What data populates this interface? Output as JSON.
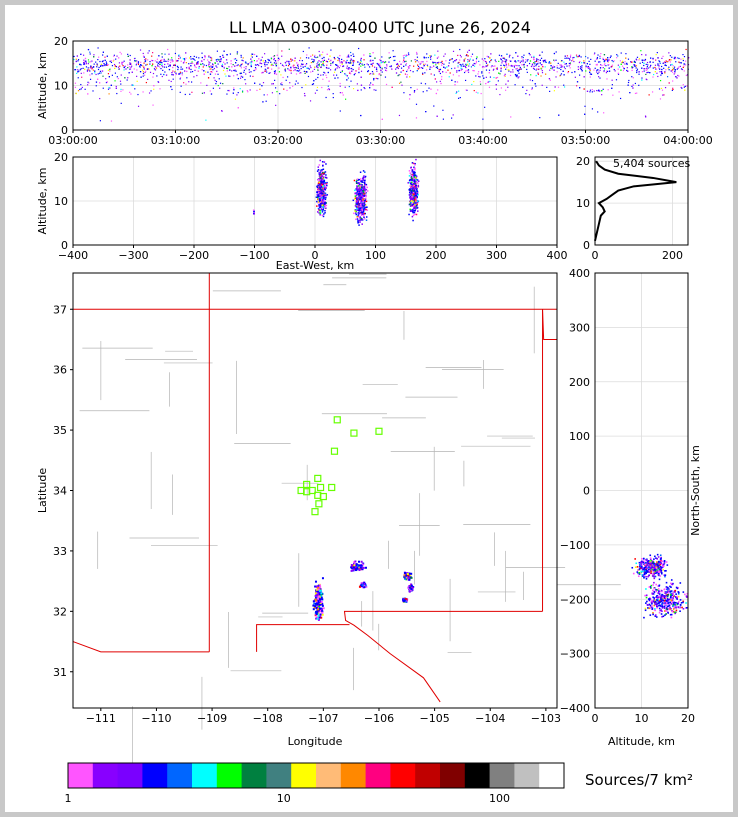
{
  "title": "LL LMA 0300-0400 UTC June 26, 2024",
  "colorbar_label": "Sources/7 km²",
  "source_count": "5,404 sources",
  "colors": [
    "#ff55ff",
    "#8800ff",
    "#7a00ff",
    "#0000ff",
    "#0066ff",
    "#00ffff",
    "#00ff00",
    "#008040",
    "#408080",
    "#ffff00",
    "#ffbb77",
    "#ff8800",
    "#ff0080",
    "#ff0000",
    "#c00000",
    "#800000",
    "#000000",
    "#808080",
    "#c0c0c0",
    "#ffffff"
  ],
  "chart_data": [
    {
      "id": "time-altitude",
      "type": "scatter",
      "xlabel": "",
      "ylabel": "Altitude, km",
      "x_ticks": [
        "03:00:00",
        "03:10:00",
        "03:20:00",
        "03:30:00",
        "03:40:00",
        "03:50:00",
        "04:00:00"
      ],
      "xlim_minutes": [
        0,
        60
      ],
      "ylim": [
        0,
        20
      ],
      "y_ticks": [
        "0",
        "10",
        "20"
      ],
      "grid": true
    },
    {
      "id": "ew-altitude",
      "type": "scatter",
      "xlabel": "East-West, km",
      "ylabel": "Altitude, km",
      "xlim": [
        -400,
        400
      ],
      "x_ticks": [
        "−400",
        "−300",
        "−200",
        "−100",
        "0",
        "100",
        "200",
        "300",
        "400"
      ],
      "ylim": [
        0,
        20
      ],
      "y_ticks": [
        "0",
        "10",
        "20"
      ],
      "grid": true,
      "clusters": [
        {
          "x": 10,
          "zmin": 5,
          "zmax": 20,
          "width": 22
        },
        {
          "x": 75,
          "zmin": 3,
          "zmax": 18,
          "width": 28
        },
        {
          "x": 162,
          "zmin": 5,
          "zmax": 20,
          "width": 20
        },
        {
          "x": -102,
          "zmin": 6,
          "zmax": 9,
          "width": 2
        }
      ]
    },
    {
      "id": "altitude-histogram",
      "type": "line",
      "xlim": [
        0,
        240
      ],
      "x_ticks": [
        "0",
        "200"
      ],
      "ylim": [
        0,
        21
      ],
      "y_ticks": [
        "0",
        "10",
        "20"
      ],
      "profile": [
        [
          0,
          1
        ],
        [
          5,
          3
        ],
        [
          10,
          5
        ],
        [
          15,
          7
        ],
        [
          25,
          8
        ],
        [
          20,
          9
        ],
        [
          10,
          10
        ],
        [
          30,
          11
        ],
        [
          45,
          12
        ],
        [
          60,
          13
        ],
        [
          100,
          14
        ],
        [
          210,
          15
        ],
        [
          150,
          16
        ],
        [
          60,
          17
        ],
        [
          25,
          18
        ],
        [
          10,
          19
        ],
        [
          3,
          20
        ]
      ]
    },
    {
      "id": "plan-view",
      "type": "scatter",
      "xlabel": "Longitude",
      "ylabel": "Latitude",
      "xlim": [
        -111.5,
        -102.8
      ],
      "ylim": [
        30.4,
        37.6
      ],
      "x_ticks": [
        "−111",
        "−110",
        "−109",
        "−108",
        "−107",
        "−106",
        "−105",
        "−104",
        "−103"
      ],
      "y_ticks": [
        "31",
        "32",
        "33",
        "34",
        "35",
        "36",
        "37"
      ],
      "stations": [
        [
          -107.3,
          34.1
        ],
        [
          -107.2,
          34.0
        ],
        [
          -107.1,
          34.2
        ],
        [
          -107.05,
          34.05
        ],
        [
          -107.0,
          33.9
        ],
        [
          -107.08,
          33.78
        ],
        [
          -107.15,
          33.65
        ],
        [
          -107.4,
          34.0
        ],
        [
          -107.3,
          33.98
        ],
        [
          -107.1,
          33.92
        ],
        [
          -106.85,
          34.05
        ],
        [
          -106.8,
          34.65
        ],
        [
          -106.75,
          35.17
        ],
        [
          -106.45,
          34.95
        ],
        [
          -106.0,
          34.98
        ]
      ],
      "storms": [
        {
          "lon": -107.1,
          "lat": 32.2,
          "dlon": 0.12,
          "dlat": 0.45
        },
        {
          "lon": -106.4,
          "lat": 32.75,
          "dlon": 0.18,
          "dlat": 0.1
        },
        {
          "lon": -106.3,
          "lat": 32.45,
          "dlon": 0.08,
          "dlat": 0.06
        },
        {
          "lon": -105.5,
          "lat": 32.6,
          "dlon": 0.1,
          "dlat": 0.08
        },
        {
          "lon": -105.45,
          "lat": 32.4,
          "dlon": 0.06,
          "dlat": 0.08
        },
        {
          "lon": -105.55,
          "lat": 32.2,
          "dlon": 0.05,
          "dlat": 0.04
        }
      ]
    },
    {
      "id": "ns-altitude",
      "type": "scatter",
      "xlabel": "Altitude, km",
      "ylabel": "North-South, km",
      "xlim": [
        0,
        20
      ],
      "x_ticks": [
        "0",
        "10",
        "20"
      ],
      "ylim": [
        -400,
        400
      ],
      "y_ticks": [
        "−400",
        "−300",
        "−200",
        "−100",
        "0",
        "100",
        "200",
        "300",
        "400"
      ],
      "clusters": [
        {
          "z": 12,
          "y": -140,
          "dz": 3,
          "dy": 18
        },
        {
          "z": 15,
          "y": -200,
          "dz": 4,
          "dy": 30
        }
      ]
    },
    {
      "id": "colorbar",
      "type": "heatmap",
      "ticks": [
        "1",
        "10",
        "100"
      ]
    }
  ]
}
